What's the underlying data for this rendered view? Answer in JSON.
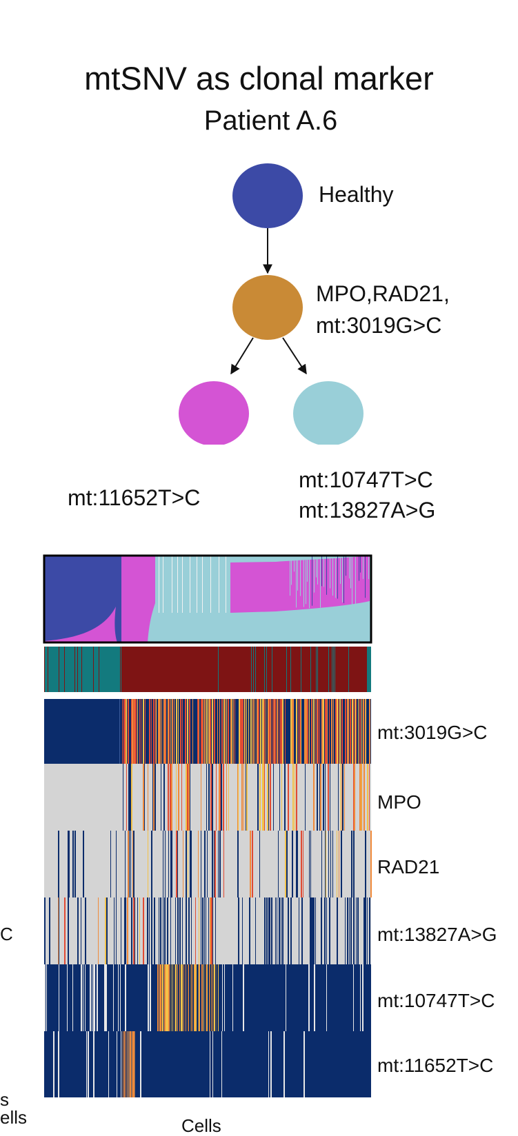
{
  "header": {
    "title": "mtSNV as clonal marker",
    "subtitle": "Patient A.6"
  },
  "tree": {
    "nodes": [
      {
        "id": "healthy",
        "label": "Healthy",
        "label2": "",
        "color": "#3c4aa6"
      },
      {
        "id": "founder",
        "label": "MPO,RAD21,",
        "label2": "mt:3019G>C",
        "color": "#c98a36"
      },
      {
        "id": "subclone_pink",
        "label": "mt:11652T>C",
        "label2": "",
        "color": "#d454d4"
      },
      {
        "id": "subclone_cyan",
        "label": "mt:10747T>C",
        "label2": "mt:13827A>G",
        "color": "#99cfd8"
      }
    ],
    "edges": [
      [
        "healthy",
        "founder"
      ],
      [
        "founder",
        "subclone_pink"
      ],
      [
        "founder",
        "subclone_cyan"
      ]
    ]
  },
  "heatmap": {
    "rows": [
      {
        "label": "mt:3019G>C"
      },
      {
        "label": "MPO"
      },
      {
        "label": "RAD21"
      },
      {
        "label": "mt:13827A>G"
      },
      {
        "label": "mt:10747T>C"
      },
      {
        "label": "mt:11652T>C"
      }
    ],
    "left_fragments": [
      "C",
      "s",
      "ells"
    ],
    "x_label": "Cells"
  },
  "colors": {
    "navy": "#0b2c6b",
    "gray": "#d4d4d4",
    "red": "#e04a33",
    "orange": "#f08a3a",
    "yellow": "#f3c248",
    "teal": "#137a7e",
    "darkred": "#7e1414"
  }
}
